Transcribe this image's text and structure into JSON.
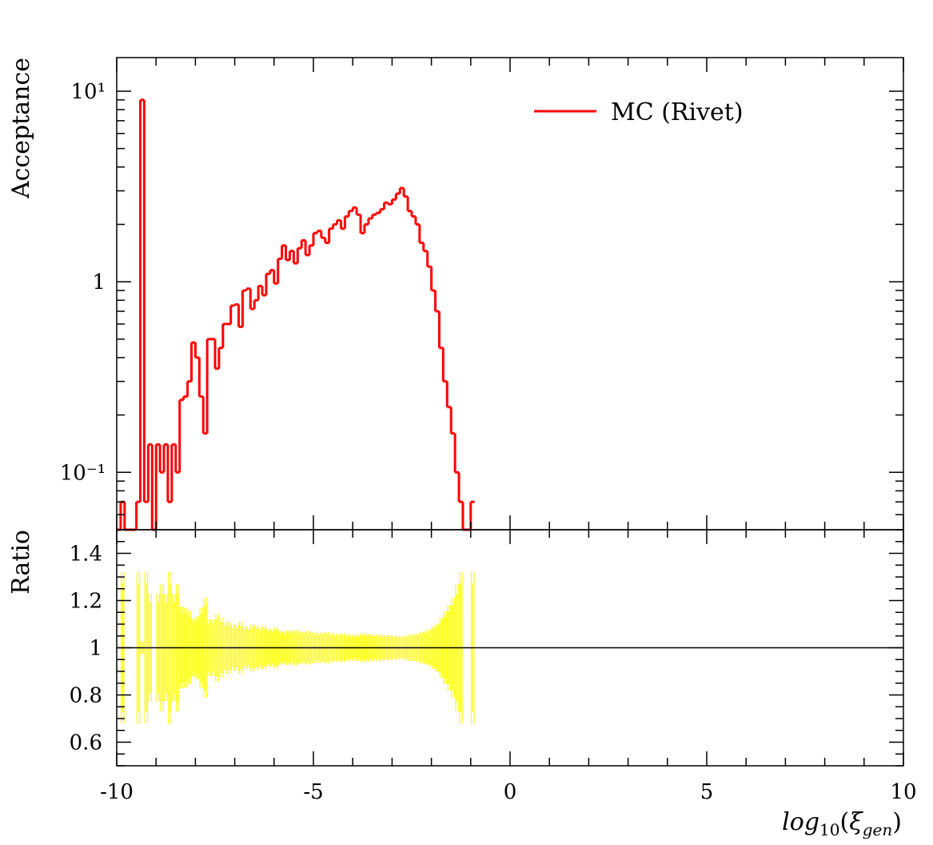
{
  "chart_data": [
    {
      "panel": "main",
      "type": "line",
      "ylabel": "Acceptance",
      "yscale": "log",
      "xlim": [
        -10,
        10
      ],
      "ylim": [
        0.05,
        15
      ],
      "ytick_labels": [
        {
          "value": 10,
          "label": "10¹"
        },
        {
          "value": 1,
          "label": "1"
        },
        {
          "value": 0.1,
          "label": "10⁻¹"
        }
      ],
      "legend": {
        "position": "top-right",
        "entries": [
          "MC (Rivet)"
        ]
      },
      "series": [
        {
          "name": "MC (Rivet)",
          "color": "#ff0000",
          "bin_width": 0.1,
          "x_start": -10.0,
          "values": [
            0,
            0.07,
            0,
            0,
            0,
            0.07,
            9,
            0.07,
            0.14,
            0,
            0.14,
            0.1,
            0.14,
            0.07,
            0.14,
            0.1,
            0.24,
            0.25,
            0.3,
            0.48,
            0.4,
            0.25,
            0.16,
            0.5,
            0.5,
            0.35,
            0.45,
            0.6,
            0.6,
            0.75,
            0.76,
            0.58,
            0.9,
            0.92,
            0.72,
            0.8,
            0.95,
            0.85,
            1.1,
            1.15,
            0.98,
            1.32,
            1.55,
            1.3,
            1.45,
            1.25,
            1.5,
            1.65,
            1.38,
            1.55,
            1.8,
            1.85,
            1.7,
            1.6,
            1.9,
            2.0,
            2.1,
            1.9,
            2.2,
            2.35,
            2.45,
            2.25,
            1.8,
            2.0,
            2.15,
            2.25,
            2.3,
            2.4,
            2.6,
            2.55,
            2.7,
            2.9,
            3.1,
            2.8,
            2.35,
            2.2,
            2.0,
            1.6,
            1.45,
            1.2,
            0.9,
            0.7,
            0.45,
            0.3,
            0.22,
            0.16,
            0.1,
            0.07,
            0,
            0,
            0.07
          ]
        }
      ]
    },
    {
      "panel": "ratio",
      "type": "area",
      "ylabel": "Ratio",
      "xlabel": "log10(ξ_gen)",
      "xlim": [
        -10,
        10
      ],
      "ylim": [
        0.5,
        1.5
      ],
      "reference_line": 1,
      "band_color": "#ffff00",
      "xtick_labels": [
        "-10",
        "-5",
        "0",
        "5",
        "10"
      ],
      "ytick_labels": [
        "0.6",
        "0.8",
        "1",
        "1.2",
        "1.4"
      ]
    }
  ],
  "labels": {
    "y_main": "Acceptance",
    "y_ratio": "Ratio",
    "x_base": "log",
    "x_sub": "10",
    "x_var": "ξ",
    "x_var_sub": "gen",
    "legend": "MC (Rivet)"
  }
}
